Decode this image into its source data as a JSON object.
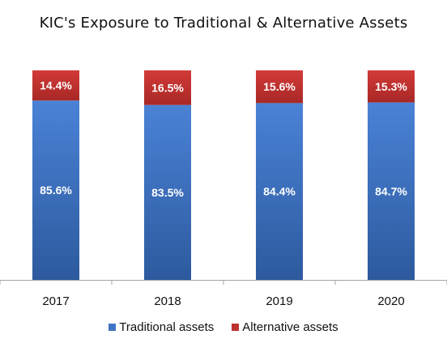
{
  "chart_data": {
    "type": "bar",
    "stacked": true,
    "normalized_percent": true,
    "title": "KIC's Exposure to Traditional & Alternative Assets",
    "categories": [
      "2017",
      "2018",
      "2019",
      "2020"
    ],
    "series": [
      {
        "name": "Traditional assets",
        "values": [
          85.6,
          83.5,
          84.4,
          84.7
        ],
        "labels": [
          "85.6%",
          "83.5%",
          "84.4%",
          "84.7%"
        ],
        "color": "#3F73C4"
      },
      {
        "name": "Alternative assets",
        "values": [
          14.4,
          16.5,
          15.6,
          15.3
        ],
        "labels": [
          "14.4%",
          "16.5%",
          "15.6%",
          "15.3%"
        ],
        "color": "#C0302E"
      }
    ],
    "ylim": [
      0,
      100
    ],
    "grid": false,
    "legend_position": "bottom"
  }
}
